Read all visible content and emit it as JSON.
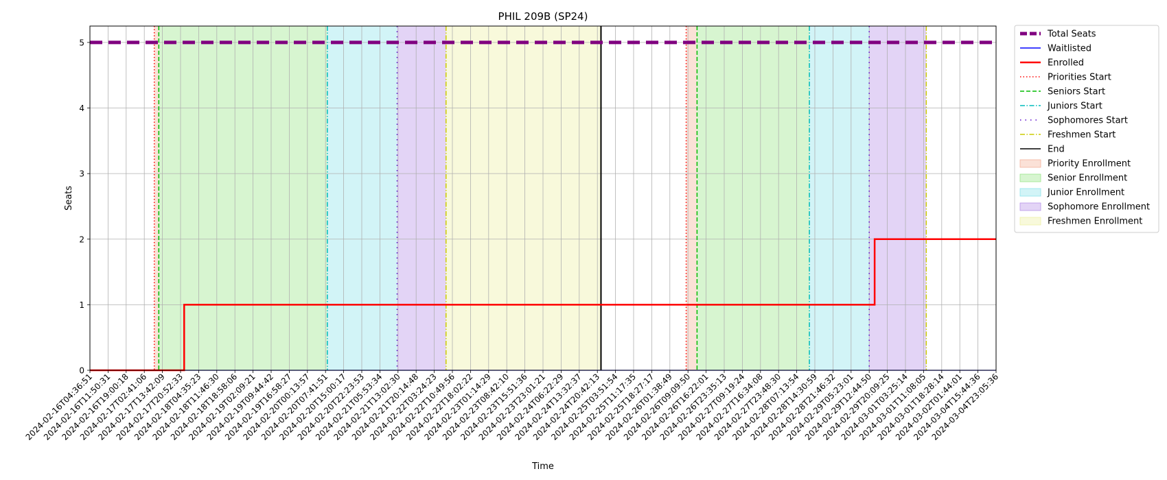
{
  "chart_data": {
    "type": "line",
    "title": "PHIL 209B (SP24)",
    "xlabel": "Time",
    "ylabel": "Seats",
    "ylim": [
      0,
      5.25
    ],
    "yticks": [
      "0",
      "1",
      "2",
      "3",
      "4",
      "5"
    ],
    "grid": true,
    "legend_position": "outside-right",
    "xticks": [
      "2024-02-16T04:36:51",
      "2024-02-16T11:50:31",
      "2024-02-16T19:00:18",
      "2024-02-17T02:41:06",
      "2024-02-17T13:42:09",
      "2024-02-17T20:52:33",
      "2024-02-18T04:35:23",
      "2024-02-18T11:46:30",
      "2024-02-18T18:58:06",
      "2024-02-19T02:09:21",
      "2024-02-19T09:44:42",
      "2024-02-19T16:58:27",
      "2024-02-20T00:13:57",
      "2024-02-20T07:41:51",
      "2024-02-20T15:00:17",
      "2024-02-20T22:23:53",
      "2024-02-21T05:53:34",
      "2024-02-21T13:02:30",
      "2024-02-21T20:14:48",
      "2024-02-22T03:24:23",
      "2024-02-22T10:49:56",
      "2024-02-22T18:02:22",
      "2024-02-23T01:14:29",
      "2024-02-23T08:42:10",
      "2024-02-23T15:51:36",
      "2024-02-23T23:01:21",
      "2024-02-24T06:22:29",
      "2024-02-24T13:32:37",
      "2024-02-24T20:42:13",
      "2024-02-25T03:51:54",
      "2024-02-25T11:17:35",
      "2024-02-25T18:27:17",
      "2024-02-26T01:38:49",
      "2024-02-26T09:09:50",
      "2024-02-26T16:22:01",
      "2024-02-26T23:35:13",
      "2024-02-27T09:19:24",
      "2024-02-27T16:34:08",
      "2024-02-27T23:48:30",
      "2024-02-28T07:13:54",
      "2024-02-28T14:30:59",
      "2024-02-28T21:46:32",
      "2024-02-29T05:23:01",
      "2024-02-29T12:44:50",
      "2024-02-29T20:09:25",
      "2024-03-01T03:25:14",
      "2024-03-01T11:08:05",
      "2024-03-01T18:28:14",
      "2024-03-02T01:44:01",
      "2024-03-04T15:44:36",
      "2024-03-04T23:05:36"
    ],
    "x_range": [
      0,
      50
    ],
    "series": [
      {
        "name": "Total Seats",
        "color": "#800080",
        "style": "dashed",
        "points": [
          [
            0,
            5
          ],
          [
            50,
            5
          ]
        ]
      },
      {
        "name": "Waitlisted",
        "color": "#0000ff",
        "style": "solid",
        "points": [
          [
            0,
            0
          ],
          [
            50,
            0
          ]
        ]
      },
      {
        "name": "Enrolled",
        "color": "#ff0000",
        "style": "solid",
        "steps": [
          [
            0,
            0
          ],
          [
            5.2,
            1
          ],
          [
            43.3,
            2
          ],
          [
            50,
            2
          ]
        ]
      }
    ],
    "vertical_lines": [
      {
        "name": "Priorities Start",
        "color": "#ff0000",
        "style": "dotted",
        "x": [
          3.55,
          32.9
        ]
      },
      {
        "name": "Seniors Start",
        "color": "#00bb00",
        "style": "dashed",
        "x": [
          3.8,
          33.5
        ]
      },
      {
        "name": "Juniors Start",
        "color": "#00bbbb",
        "style": "dashdot",
        "x": [
          13.1,
          39.7
        ]
      },
      {
        "name": "Sophomores Start",
        "color": "#5500cc",
        "style": "loosedot",
        "x": [
          16.95,
          43.0
        ]
      },
      {
        "name": "Freshmen Start",
        "color": "#cccc00",
        "style": "dashdot",
        "x": [
          19.65,
          46.15
        ]
      },
      {
        "name": "End",
        "color": "#000000",
        "style": "solid",
        "x": [
          28.2
        ]
      }
    ],
    "regions": [
      {
        "name": "Priority Enrollment",
        "color": "#f4b39c",
        "spans": [
          [
            3.55,
            3.8
          ],
          [
            32.9,
            33.5
          ]
        ]
      },
      {
        "name": "Senior Enrollment",
        "color": "#9be58a",
        "spans": [
          [
            3.8,
            13.1
          ],
          [
            33.5,
            39.7
          ]
        ]
      },
      {
        "name": "Junior Enrollment",
        "color": "#8fe3eb",
        "spans": [
          [
            13.1,
            16.95
          ],
          [
            39.7,
            43.0
          ]
        ]
      },
      {
        "name": "Sophomore Enrollment",
        "color": "#b894e8",
        "spans": [
          [
            16.95,
            19.65
          ],
          [
            43.0,
            46.15
          ]
        ]
      },
      {
        "name": "Freshmen Enrollment",
        "color": "#eef0a6",
        "spans": [
          [
            19.65,
            28.2
          ]
        ]
      }
    ],
    "legend": [
      {
        "label": "Total Seats",
        "kind": "line",
        "color": "#800080",
        "style": "thick-dashed"
      },
      {
        "label": "Waitlisted",
        "kind": "line",
        "color": "#0000ff",
        "style": "solid"
      },
      {
        "label": "Enrolled",
        "kind": "line",
        "color": "#ff0000",
        "style": "thick"
      },
      {
        "label": "Priorities Start",
        "kind": "line",
        "color": "#ff0000",
        "style": "dotted"
      },
      {
        "label": "Seniors Start",
        "kind": "line",
        "color": "#00bb00",
        "style": "dashed"
      },
      {
        "label": "Juniors Start",
        "kind": "line",
        "color": "#00bbbb",
        "style": "dashdot"
      },
      {
        "label": "Sophomores Start",
        "kind": "line",
        "color": "#5500cc",
        "style": "loosedot"
      },
      {
        "label": "Freshmen Start",
        "kind": "line",
        "color": "#cccc00",
        "style": "dashdot"
      },
      {
        "label": "End",
        "kind": "line",
        "color": "#000000",
        "style": "solid"
      },
      {
        "label": "Priority Enrollment",
        "kind": "patch",
        "color": "#f4b39c"
      },
      {
        "label": "Senior Enrollment",
        "kind": "patch",
        "color": "#9be58a"
      },
      {
        "label": "Junior Enrollment",
        "kind": "patch",
        "color": "#8fe3eb"
      },
      {
        "label": "Sophomore Enrollment",
        "kind": "patch",
        "color": "#b894e8"
      },
      {
        "label": "Freshmen Enrollment",
        "kind": "patch",
        "color": "#eef0a6"
      }
    ]
  }
}
